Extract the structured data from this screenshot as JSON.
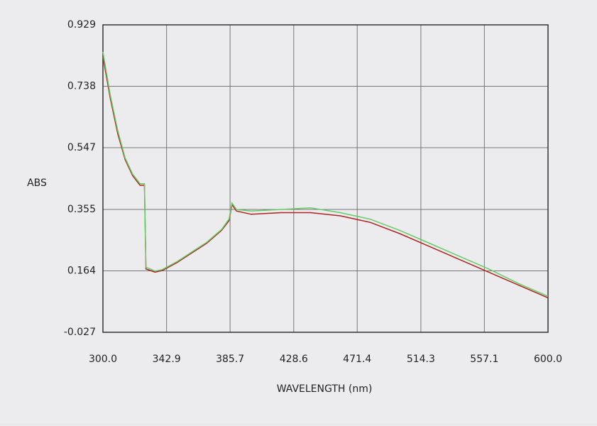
{
  "chart_data": {
    "type": "line",
    "ylabel": "ABS",
    "xlabel": "WAVELENGTH (nm)",
    "x": [
      300,
      305,
      310,
      315,
      320,
      325,
      328,
      329,
      332,
      335,
      340,
      350,
      360,
      370,
      380,
      385,
      387,
      390,
      400,
      420,
      440,
      460,
      480,
      500,
      520,
      540,
      560,
      580,
      600
    ],
    "series": [
      {
        "color": "#b22222",
        "values": [
          0.83,
          0.7,
          0.59,
          0.51,
          0.46,
          0.43,
          0.43,
          0.17,
          0.165,
          0.16,
          0.165,
          0.19,
          0.22,
          0.25,
          0.29,
          0.32,
          0.37,
          0.35,
          0.34,
          0.345,
          0.345,
          0.335,
          0.315,
          0.28,
          0.24,
          0.2,
          0.16,
          0.12,
          0.08
        ]
      },
      {
        "color": "#66cc66",
        "values": [
          0.845,
          0.71,
          0.6,
          0.515,
          0.465,
          0.435,
          0.435,
          0.175,
          0.17,
          0.163,
          0.168,
          0.193,
          0.223,
          0.253,
          0.293,
          0.325,
          0.375,
          0.355,
          0.35,
          0.355,
          0.36,
          0.345,
          0.325,
          0.29,
          0.25,
          0.21,
          0.17,
          0.125,
          0.085
        ]
      }
    ],
    "xlim": [
      300,
      600
    ],
    "xticks": [
      {
        "value": 300,
        "label": "300.0"
      },
      342.9,
      385.7,
      428.6,
      471.4,
      514.3,
      557.1,
      {
        "value": 600,
        "label": "600.0"
      }
    ],
    "ylim": [
      -0.027,
      0.929
    ],
    "yticks": [
      -0.027,
      0.164,
      0.355,
      0.547,
      0.738,
      0.929
    ],
    "grid": true
  }
}
